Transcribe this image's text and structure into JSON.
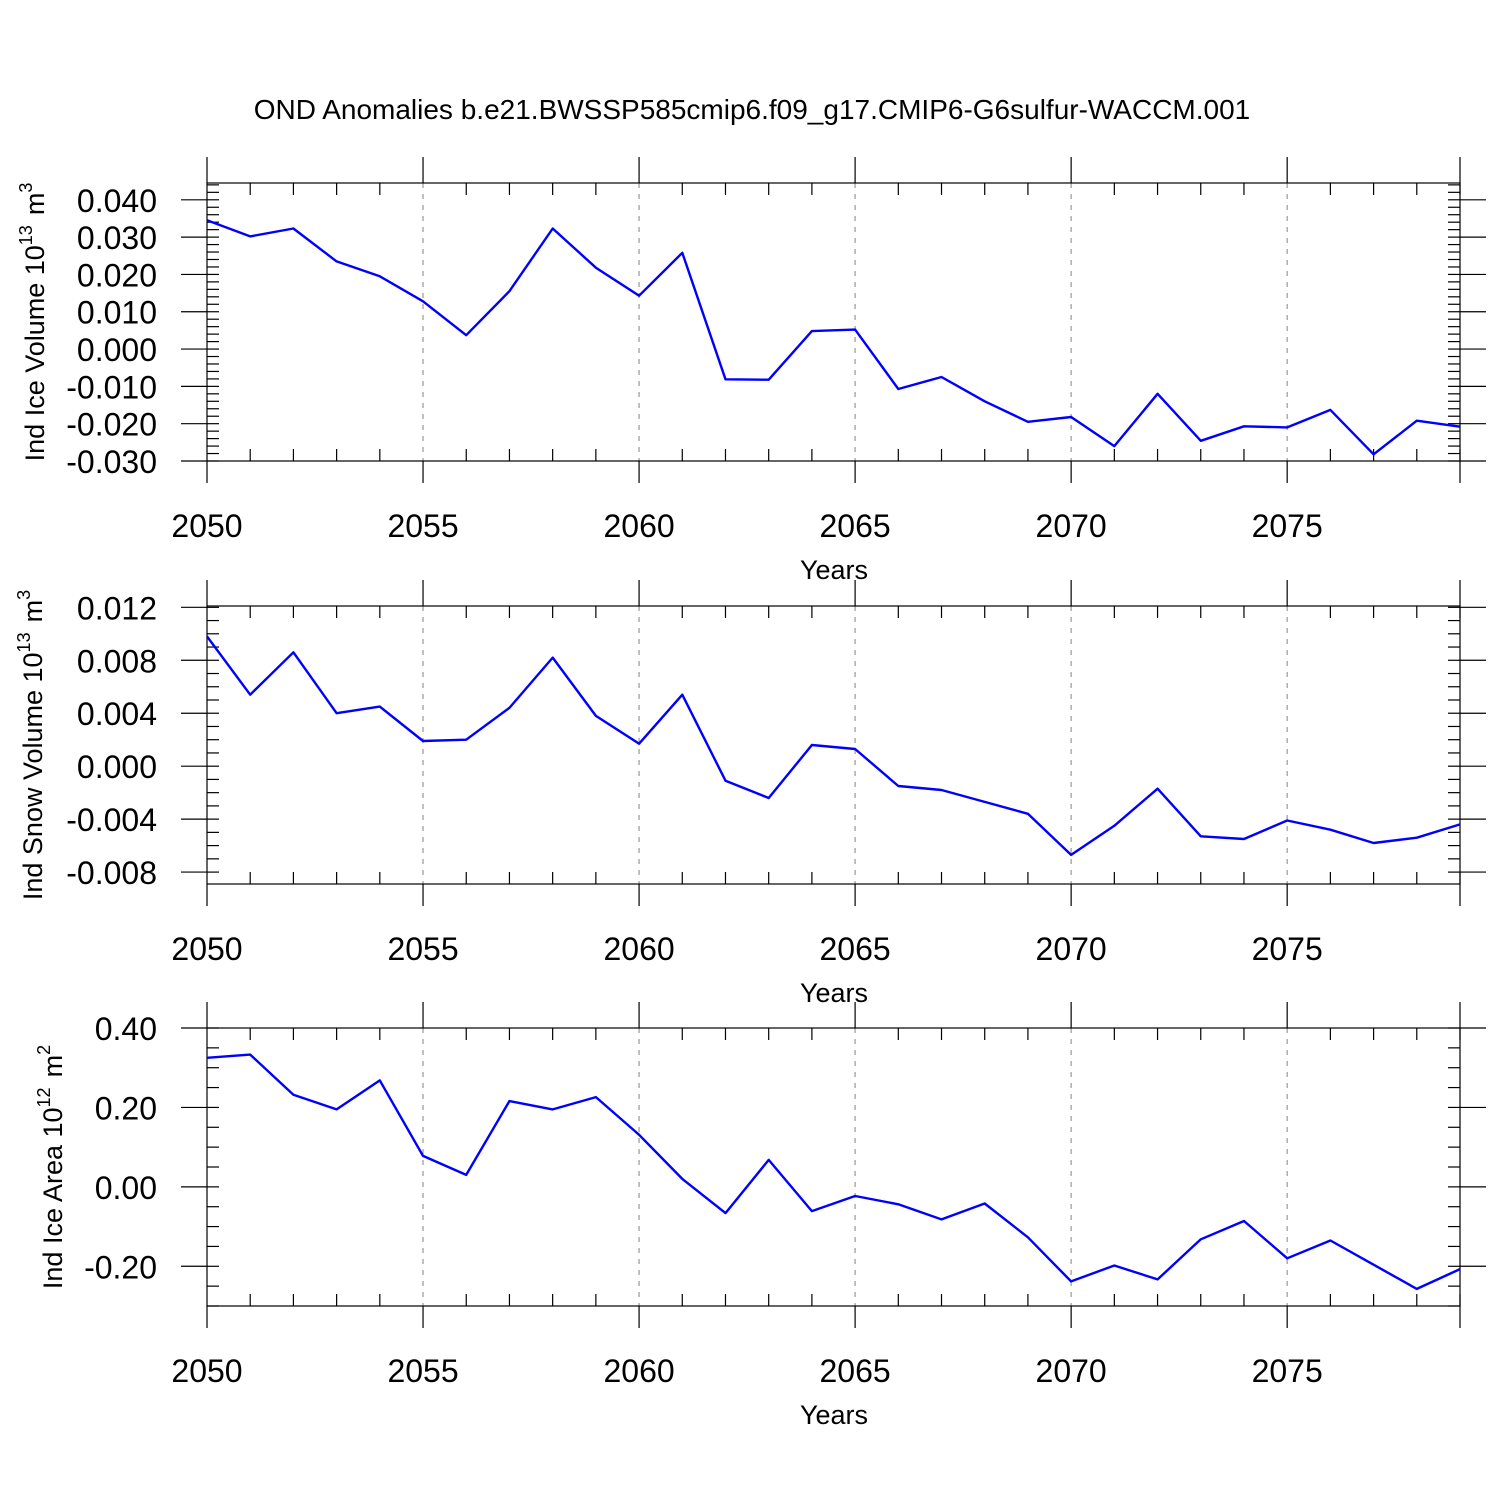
{
  "title": "OND Anomalies b.e21.BWSSP585cmip6.f09_g17.CMIP6-G6sulfur-WACCM.001",
  "colors": {
    "line": "#0000ff",
    "grid": "#a0a0a0",
    "axis": "#000000"
  },
  "chart_data": [
    {
      "type": "line",
      "ylabel_main": "Ind Ice Volume 10",
      "ylabel_exp": "13",
      "ylabel_unit": "m",
      "ylabel_unit_exp": "3",
      "xlabel": "Years",
      "xlim": [
        2050,
        2079
      ],
      "ylim": [
        -0.03,
        0.0445
      ],
      "x_ticks": [
        "2050",
        "2055",
        "2060",
        "2065",
        "2070",
        "2075"
      ],
      "y_ticks": [
        "0.040",
        "0.030",
        "0.020",
        "0.010",
        "0.000",
        "-0.010",
        "-0.020",
        "-0.030"
      ],
      "grid": "vertical dashed at major x ticks",
      "x": [
        2050,
        2051,
        2052,
        2053,
        2054,
        2055,
        2056,
        2057,
        2058,
        2059,
        2060,
        2061,
        2062,
        2063,
        2064,
        2065,
        2066,
        2067,
        2068,
        2069,
        2070,
        2071,
        2072,
        2073,
        2074,
        2075,
        2076,
        2077,
        2078,
        2079
      ],
      "values": [
        0.0345,
        0.0302,
        0.0323,
        0.0235,
        0.0195,
        0.0128,
        0.0037,
        0.0155,
        0.0323,
        0.0218,
        0.0143,
        0.0258,
        -0.0081,
        -0.0082,
        0.0048,
        0.0052,
        -0.0107,
        -0.0075,
        -0.014,
        -0.0195,
        -0.0182,
        -0.026,
        -0.012,
        -0.0246,
        -0.0207,
        -0.021,
        -0.0163,
        -0.0282,
        -0.0192,
        -0.0208
      ]
    },
    {
      "type": "line",
      "ylabel_main": "Ind Snow Volume 10",
      "ylabel_exp": "13",
      "ylabel_unit": "m",
      "ylabel_unit_exp": "3",
      "xlabel": "Years",
      "xlim": [
        2050,
        2079
      ],
      "ylim": [
        -0.0089,
        0.0121
      ],
      "x_ticks": [
        "2050",
        "2055",
        "2060",
        "2065",
        "2070",
        "2075"
      ],
      "y_ticks": [
        "0.012",
        "0.008",
        "0.004",
        "0.000",
        "-0.004",
        "-0.008"
      ],
      "grid": "vertical dashed at major x ticks",
      "x": [
        2050,
        2051,
        2052,
        2053,
        2054,
        2055,
        2056,
        2057,
        2058,
        2059,
        2060,
        2061,
        2062,
        2063,
        2064,
        2065,
        2066,
        2067,
        2068,
        2069,
        2070,
        2071,
        2072,
        2073,
        2074,
        2075,
        2076,
        2077,
        2078,
        2079
      ],
      "values": [
        0.0098,
        0.0054,
        0.0086,
        0.004,
        0.0045,
        0.0019,
        0.002,
        0.0044,
        0.0082,
        0.0038,
        0.0017,
        0.0054,
        -0.0011,
        -0.0024,
        0.0016,
        0.0013,
        -0.0015,
        -0.0018,
        -0.0027,
        -0.0036,
        -0.0067,
        -0.0045,
        -0.0017,
        -0.0053,
        -0.0055,
        -0.0041,
        -0.0048,
        -0.0058,
        -0.0054,
        -0.0044
      ]
    },
    {
      "type": "line",
      "ylabel_main": "Ind Ice Area 10",
      "ylabel_exp": "12",
      "ylabel_unit": "m",
      "ylabel_unit_exp": "2",
      "xlabel": "Years",
      "xlim": [
        2050,
        2079
      ],
      "ylim": [
        -0.3,
        0.4
      ],
      "x_ticks": [
        "2050",
        "2055",
        "2060",
        "2065",
        "2070",
        "2075"
      ],
      "y_ticks": [
        "0.40",
        "0.20",
        "0.00",
        "-0.20"
      ],
      "grid": "vertical dashed at major x ticks",
      "x": [
        2050,
        2051,
        2052,
        2053,
        2054,
        2055,
        2056,
        2057,
        2058,
        2059,
        2060,
        2061,
        2062,
        2063,
        2064,
        2065,
        2066,
        2067,
        2068,
        2069,
        2070,
        2071,
        2072,
        2073,
        2074,
        2075,
        2076,
        2077,
        2078,
        2079
      ],
      "values": [
        0.325,
        0.333,
        0.232,
        0.195,
        0.268,
        0.078,
        0.03,
        0.216,
        0.195,
        0.226,
        0.131,
        0.02,
        -0.066,
        0.068,
        -0.061,
        -0.023,
        -0.044,
        -0.082,
        -0.042,
        -0.127,
        -0.238,
        -0.198,
        -0.233,
        -0.132,
        -0.086,
        -0.18,
        -0.135,
        -0.196,
        -0.257,
        -0.207
      ]
    }
  ]
}
